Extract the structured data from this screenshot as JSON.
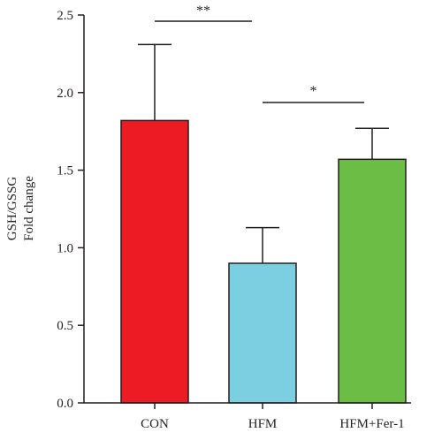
{
  "chart_data": {
    "type": "bar",
    "categories": [
      "CON",
      "HFM",
      "HFM+Fer-1"
    ],
    "values": [
      1.82,
      0.9,
      1.57
    ],
    "errors": [
      0.49,
      0.23,
      0.2
    ],
    "colors": [
      "#ed1c24",
      "#7ccfe0",
      "#6cbd45"
    ],
    "ylabel_line1": "GSH/GSSG",
    "ylabel_line2": "Fold change",
    "ylim": [
      0,
      2.5
    ],
    "yticks": [
      "0.0",
      "0.5",
      "1.0",
      "1.5",
      "2.0",
      "2.5"
    ],
    "significance": [
      {
        "from": "CON",
        "to": "HFM",
        "label": "**"
      },
      {
        "from": "HFM",
        "to": "HFM+Fer-1",
        "label": "*"
      }
    ]
  }
}
